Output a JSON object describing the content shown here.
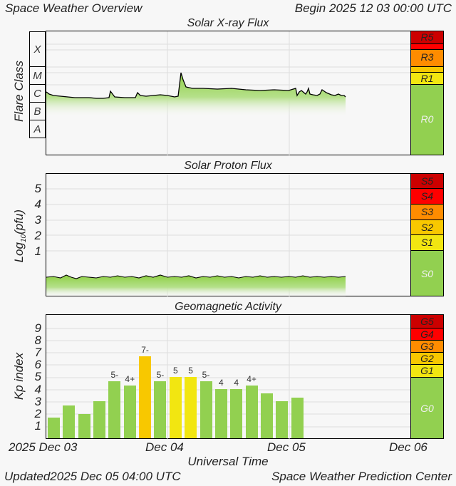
{
  "header": {
    "title": "Space Weather Overview",
    "begin_label": "Begin",
    "begin_time": "2025 12 03 00:00 UTC"
  },
  "footer": {
    "updated_label": "Updated",
    "updated_time": "2025 Dec 05 04:00 UTC",
    "source": "Space Weather Prediction Center"
  },
  "x_axis": {
    "label": "Universal Time",
    "ticks": [
      "2025 Dec 03",
      "Dec 04",
      "Dec 05",
      "Dec 06"
    ]
  },
  "colors": {
    "background": "#f7f7f7",
    "green": "#92d050",
    "yellow": "#f2e611",
    "gold": "#f8c800",
    "orange": "#ff8c00",
    "red": "#ff0000",
    "darkred": "#cc0000"
  },
  "chart_data": [
    {
      "type": "area",
      "title": "Solar X-ray Flux",
      "ylabel": "Flare Class",
      "y_categories": [
        "A",
        "B",
        "C",
        "M",
        "X"
      ],
      "x_ticks": [
        "2025 Dec 03",
        "Dec 04",
        "Dec 05",
        "Dec 06"
      ],
      "description": "X-ray flux mostly at low C-class level from Dec 03 through early Dec 05, with a short spike reaching M-class near Dec 04 ~02:00 UTC and small bumps near Dec 05.",
      "approx_series": {
        "x_hours": [
          0,
          6,
          12,
          18,
          24,
          26,
          30,
          36,
          42,
          48,
          50,
          52
        ],
        "class_level": [
          "C1",
          "C1",
          "C1.5",
          "C1",
          "C1.5",
          "M1",
          "C2",
          "C2",
          "C1.5",
          "C1.5",
          "C3",
          "C1.5"
        ]
      },
      "scale": {
        "labels": [
          "R5",
          "R3",
          "R1",
          "R0"
        ]
      }
    },
    {
      "type": "area",
      "title": "Solar Proton Flux",
      "ylabel": "Log10(pfu)",
      "y_ticks": [
        1,
        2,
        3,
        4,
        5
      ],
      "x_ticks": [
        "2025 Dec 03",
        "Dec 04",
        "Dec 05",
        "Dec 06"
      ],
      "description": "Proton flux flat at background level (well below 1 on log10 pfu scale) through Dec 05 04:00 UTC.",
      "scale": {
        "labels": [
          "S5",
          "S4",
          "S3",
          "S2",
          "S1",
          "S0"
        ]
      }
    },
    {
      "type": "bar",
      "title": "Geomagnetic Activity",
      "ylabel": "Kp index",
      "y_ticks": [
        1,
        2,
        3,
        4,
        5,
        6,
        7,
        8,
        9
      ],
      "ylim": [
        0,
        9
      ],
      "x_ticks": [
        "2025 Dec 03",
        "Dec 04",
        "Dec 05",
        "Dec 06"
      ],
      "categories": [
        "Dec03 00",
        "Dec03 03",
        "Dec03 06",
        "Dec03 09",
        "Dec03 12",
        "Dec03 15",
        "Dec03 18",
        "Dec03 21",
        "Dec04 00",
        "Dec04 03",
        "Dec04 06",
        "Dec04 09",
        "Dec04 12",
        "Dec04 15",
        "Dec04 18",
        "Dec04 21",
        "Dec05 00",
        "Dec05 03"
      ],
      "values": [
        1.67,
        2.67,
        2.0,
        3.0,
        4.67,
        4.33,
        6.67,
        4.67,
        5.0,
        5.0,
        4.67,
        4.0,
        4.0,
        4.33,
        3.67,
        3.0,
        3.33
      ],
      "bar_labels": [
        "",
        "",
        "",
        "",
        "5-",
        "4+",
        "7-",
        "5-",
        "5",
        "5",
        "5-",
        "4",
        "4",
        "4+",
        "",
        "",
        ""
      ],
      "bar_colors": [
        "#92d050",
        "#92d050",
        "#92d050",
        "#92d050",
        "#92d050",
        "#92d050",
        "#f8c800",
        "#92d050",
        "#f2e611",
        "#f2e611",
        "#92d050",
        "#92d050",
        "#92d050",
        "#92d050",
        "#92d050",
        "#92d050",
        "#92d050"
      ],
      "scale": {
        "labels": [
          "G5",
          "G4",
          "G3",
          "G2",
          "G1",
          "G0"
        ]
      }
    }
  ],
  "panels": {
    "xray": {
      "title": "Solar X-ray Flux",
      "ylabel": "Flare Class",
      "classes": [
        "X",
        "M",
        "C",
        "B",
        "A"
      ],
      "scale": [
        "R5",
        "R3",
        "R1",
        "R0"
      ]
    },
    "proton": {
      "title": "Solar Proton Flux",
      "ylabel_main": "Log",
      "ylabel_sub": "10",
      "ylabel_rest": "(pfu)",
      "ticks": [
        "5",
        "4",
        "3",
        "2",
        "1"
      ],
      "scale": [
        "S5",
        "S4",
        "S3",
        "S2",
        "S1",
        "S0"
      ]
    },
    "kp": {
      "title": "Geomagnetic Activity",
      "ylabel": "Kp index",
      "ticks": [
        "9",
        "8",
        "7",
        "6",
        "5",
        "4",
        "3",
        "2",
        "1"
      ],
      "scale": [
        "G5",
        "G4",
        "G3",
        "G2",
        "G1",
        "G0"
      ]
    }
  }
}
